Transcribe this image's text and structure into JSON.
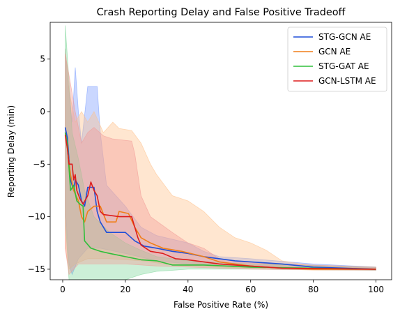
{
  "chart_data": {
    "type": "line",
    "title": "Crash Reporting Delay and False Positive Tradeoff",
    "xlabel": "False Positive Rate (%)",
    "ylabel": "Reporting Delay (min)",
    "xlim": [
      -4,
      105
    ],
    "ylim": [
      -16,
      8.5
    ],
    "xticks": [
      0,
      20,
      40,
      60,
      80,
      100
    ],
    "yticks": [
      -15,
      -10,
      -5,
      0,
      5
    ],
    "legend_position": "top-right",
    "grid": false,
    "series": [
      {
        "name": "STG-GCN AE",
        "color": "#1f4fd8",
        "band_color": "#7a9cff",
        "points": [
          [
            0.8,
            -1.5
          ],
          [
            1.5,
            -2.5
          ],
          [
            2.5,
            -6.5
          ],
          [
            3.5,
            -7.5
          ],
          [
            4,
            -6.5
          ],
          [
            5,
            -7.0
          ],
          [
            6,
            -8.5
          ],
          [
            7,
            -9.0
          ],
          [
            8,
            -7.2
          ],
          [
            10,
            -7.2
          ],
          [
            11,
            -9.5
          ],
          [
            12,
            -10.5
          ],
          [
            14,
            -11.5
          ],
          [
            20,
            -11.5
          ],
          [
            23,
            -12.3
          ],
          [
            26,
            -12.8
          ],
          [
            30,
            -13.0
          ],
          [
            35,
            -13.3
          ],
          [
            40,
            -13.5
          ],
          [
            45,
            -13.8
          ],
          [
            50,
            -14.0
          ],
          [
            55,
            -14.2
          ],
          [
            60,
            -14.3
          ],
          [
            70,
            -14.5
          ],
          [
            80,
            -14.8
          ],
          [
            90,
            -14.9
          ],
          [
            100,
            -15.0
          ]
        ],
        "lower": [
          [
            0.8,
            -9
          ],
          [
            2,
            -14.5
          ],
          [
            3,
            -15.5
          ],
          [
            5,
            -14
          ],
          [
            8,
            -13
          ],
          [
            12,
            -13
          ],
          [
            20,
            -13.5
          ],
          [
            30,
            -14.2
          ],
          [
            40,
            -14.5
          ],
          [
            50,
            -14.6
          ],
          [
            60,
            -14.7
          ],
          [
            80,
            -15.0
          ],
          [
            100,
            -15.1
          ]
        ],
        "upper": [
          [
            0.8,
            6
          ],
          [
            2,
            2
          ],
          [
            3,
            -1
          ],
          [
            4,
            4.2
          ],
          [
            5,
            0
          ],
          [
            6,
            -3
          ],
          [
            8,
            2.4
          ],
          [
            11,
            2.4
          ],
          [
            12,
            -2
          ],
          [
            14,
            -7
          ],
          [
            20,
            -9
          ],
          [
            25,
            -11
          ],
          [
            30,
            -11.8
          ],
          [
            40,
            -12.5
          ],
          [
            45,
            -13.3
          ],
          [
            50,
            -13.8
          ],
          [
            60,
            -14.0
          ],
          [
            80,
            -14.5
          ],
          [
            100,
            -14.8
          ]
        ]
      },
      {
        "name": "GCN AE",
        "color": "#f07f18",
        "band_color": "#ffc18a",
        "points": [
          [
            0.8,
            -2.0
          ],
          [
            1.5,
            -3.5
          ],
          [
            2.5,
            -6.0
          ],
          [
            3.5,
            -7.5
          ],
          [
            5,
            -8.5
          ],
          [
            6,
            -10.0
          ],
          [
            7,
            -10.5
          ],
          [
            8,
            -9.5
          ],
          [
            10,
            -9.0
          ],
          [
            12,
            -9.0
          ],
          [
            14,
            -10.5
          ],
          [
            17,
            -10.5
          ],
          [
            18,
            -9.5
          ],
          [
            21,
            -9.7
          ],
          [
            23,
            -11.0
          ],
          [
            25,
            -12.0
          ],
          [
            28,
            -12.5
          ],
          [
            32,
            -13.0
          ],
          [
            38,
            -13.3
          ],
          [
            45,
            -13.8
          ],
          [
            50,
            -14.3
          ],
          [
            55,
            -14.5
          ],
          [
            60,
            -14.7
          ],
          [
            70,
            -14.9
          ],
          [
            80,
            -15.0
          ],
          [
            100,
            -15.0
          ]
        ],
        "lower": [
          [
            0.8,
            -13
          ],
          [
            2,
            -15
          ],
          [
            4,
            -14.5
          ],
          [
            8,
            -14
          ],
          [
            15,
            -14
          ],
          [
            25,
            -14.2
          ],
          [
            35,
            -14.6
          ],
          [
            50,
            -14.8
          ],
          [
            60,
            -14.9
          ],
          [
            80,
            -15.1
          ],
          [
            100,
            -15.1
          ]
        ],
        "upper": [
          [
            0.8,
            6
          ],
          [
            2,
            2
          ],
          [
            4,
            -1
          ],
          [
            6,
            0
          ],
          [
            8,
            -1
          ],
          [
            10,
            0
          ],
          [
            13,
            -2
          ],
          [
            16,
            -1
          ],
          [
            18,
            -1.6
          ],
          [
            22,
            -1.8
          ],
          [
            25,
            -3
          ],
          [
            28,
            -5
          ],
          [
            30,
            -6
          ],
          [
            35,
            -8
          ],
          [
            40,
            -8.5
          ],
          [
            45,
            -9.5
          ],
          [
            50,
            -11
          ],
          [
            55,
            -12
          ],
          [
            60,
            -12.5
          ],
          [
            65,
            -13.2
          ],
          [
            70,
            -14.2
          ],
          [
            80,
            -14.7
          ],
          [
            100,
            -14.9
          ]
        ]
      },
      {
        "name": "STG-GAT AE",
        "color": "#2fbf3a",
        "band_color": "#7fd69a",
        "points": [
          [
            0.8,
            -2.0
          ],
          [
            1.5,
            -3.0
          ],
          [
            2.5,
            -7.5
          ],
          [
            3.5,
            -7.0
          ],
          [
            4.5,
            -8.5
          ],
          [
            5.5,
            -8.8
          ],
          [
            6.5,
            -9.0
          ],
          [
            7,
            -12.3
          ],
          [
            9,
            -13.0
          ],
          [
            12,
            -13.3
          ],
          [
            15,
            -13.5
          ],
          [
            20,
            -13.8
          ],
          [
            25,
            -14.1
          ],
          [
            30,
            -14.2
          ],
          [
            35,
            -14.6
          ],
          [
            45,
            -14.6
          ],
          [
            60,
            -14.8
          ],
          [
            80,
            -14.9
          ],
          [
            100,
            -15.0
          ]
        ],
        "lower": [
          [
            0.8,
            -10
          ],
          [
            2,
            -16
          ],
          [
            10,
            -16
          ],
          [
            20,
            -16
          ],
          [
            25,
            -15.5
          ],
          [
            30,
            -15.2
          ],
          [
            40,
            -15.0
          ],
          [
            60,
            -15.0
          ],
          [
            100,
            -15.1
          ]
        ],
        "upper": [
          [
            0.8,
            8.2
          ],
          [
            2,
            3
          ],
          [
            3,
            -2
          ],
          [
            5,
            -4.5
          ],
          [
            7,
            -7.5
          ],
          [
            10,
            -10
          ],
          [
            15,
            -11.5
          ],
          [
            20,
            -12.5
          ],
          [
            25,
            -13.2
          ],
          [
            30,
            -13.8
          ],
          [
            40,
            -14.2
          ],
          [
            60,
            -14.5
          ],
          [
            100,
            -14.8
          ]
        ]
      },
      {
        "name": "GCN-LSTM AE",
        "color": "#dd1c1c",
        "band_color": "#f29a96",
        "points": [
          [
            0.8,
            -2.2
          ],
          [
            1.5,
            -3.5
          ],
          [
            2,
            -5.0
          ],
          [
            3,
            -5.0
          ],
          [
            3.5,
            -6.5
          ],
          [
            4,
            -6.0
          ],
          [
            4.5,
            -7.5
          ],
          [
            5.5,
            -8.3
          ],
          [
            6.5,
            -8.8
          ],
          [
            8,
            -8.0
          ],
          [
            9,
            -6.7
          ],
          [
            10,
            -7.5
          ],
          [
            11,
            -8.0
          ],
          [
            12,
            -9.5
          ],
          [
            13,
            -9.8
          ],
          [
            18,
            -10.0
          ],
          [
            22,
            -10.0
          ],
          [
            23,
            -11.0
          ],
          [
            24,
            -12.0
          ],
          [
            25,
            -12.7
          ],
          [
            28,
            -13.3
          ],
          [
            32,
            -13.5
          ],
          [
            36,
            -14.0
          ],
          [
            40,
            -14.1
          ],
          [
            45,
            -14.3
          ],
          [
            50,
            -14.5
          ],
          [
            55,
            -14.6
          ],
          [
            60,
            -14.7
          ],
          [
            70,
            -14.9
          ],
          [
            100,
            -15.0
          ]
        ],
        "lower": [
          [
            0.8,
            -13
          ],
          [
            2,
            -15.5
          ],
          [
            5,
            -14.5
          ],
          [
            10,
            -14.5
          ],
          [
            20,
            -14.5
          ],
          [
            30,
            -14.7
          ],
          [
            40,
            -14.8
          ],
          [
            60,
            -15.0
          ],
          [
            100,
            -15.1
          ]
        ],
        "upper": [
          [
            0.8,
            5.5
          ],
          [
            2,
            3.5
          ],
          [
            4,
            0
          ],
          [
            6,
            -3
          ],
          [
            8,
            -2
          ],
          [
            10,
            -1.5
          ],
          [
            13,
            -2.3
          ],
          [
            16,
            -2.6
          ],
          [
            22,
            -2.8
          ],
          [
            23,
            -4
          ],
          [
            25,
            -8
          ],
          [
            28,
            -10
          ],
          [
            35,
            -11.5
          ],
          [
            40,
            -12.5
          ],
          [
            45,
            -13.0
          ],
          [
            50,
            -14.0
          ],
          [
            60,
            -14.4
          ],
          [
            100,
            -14.8
          ]
        ]
      }
    ]
  }
}
